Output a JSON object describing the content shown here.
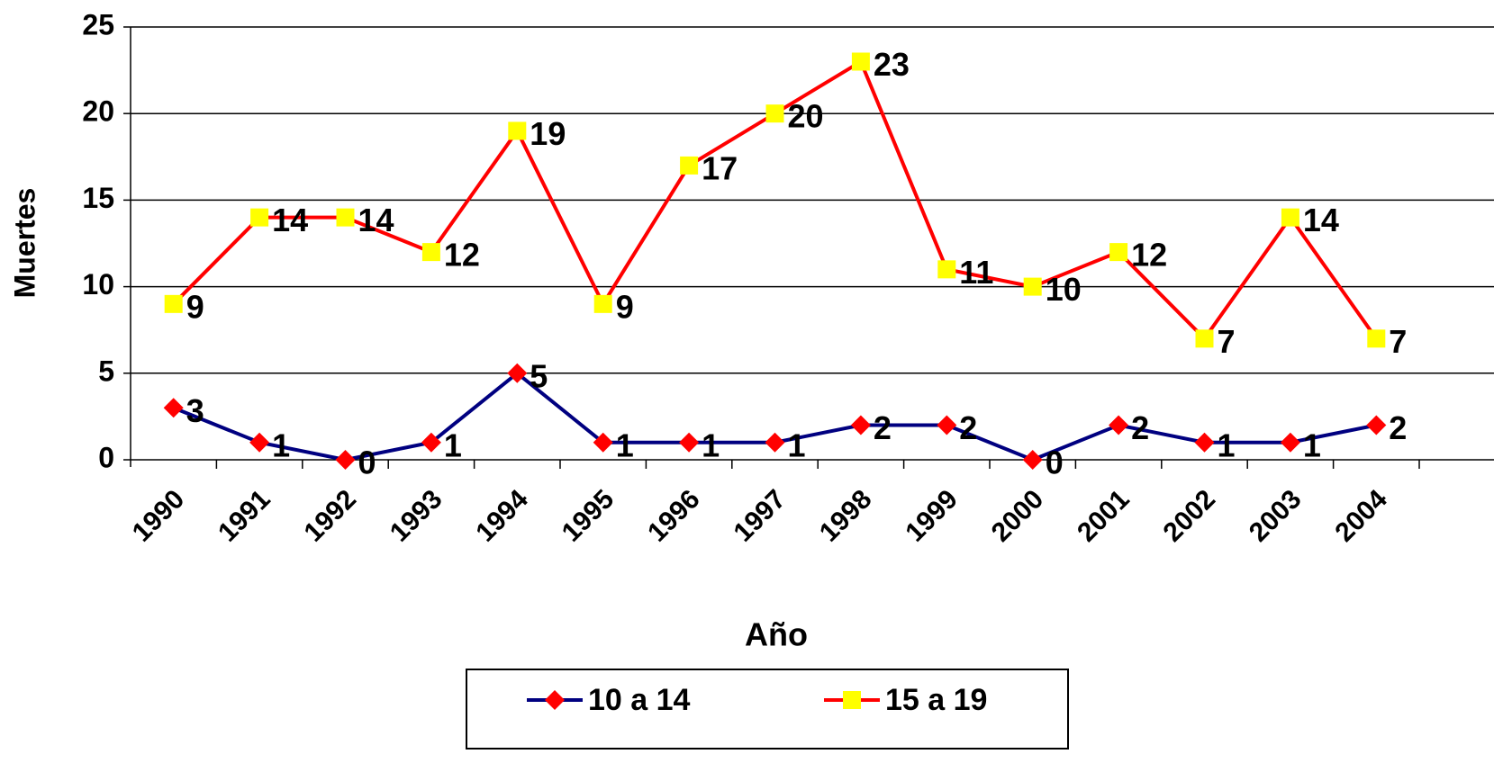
{
  "chart_data": {
    "type": "line",
    "x_label": "Año",
    "y_label": "Muertes",
    "categories": [
      "1990",
      "1991",
      "1992",
      "1993",
      "1994",
      "1995",
      "1996",
      "1997",
      "1998",
      "1999",
      "2000",
      "2001",
      "2002",
      "2003",
      "2004"
    ],
    "series": [
      {
        "name": "10 a 14",
        "color": "#000080",
        "marker": "diamond",
        "marker_color": "#ff0000",
        "values": [
          3,
          1,
          0,
          1,
          5,
          1,
          1,
          1,
          2,
          2,
          0,
          2,
          1,
          1,
          2
        ]
      },
      {
        "name": "15 a 19",
        "color": "#ff0000",
        "marker": "square",
        "marker_color": "#ffff00",
        "values": [
          9,
          14,
          14,
          12,
          19,
          9,
          17,
          20,
          23,
          11,
          10,
          12,
          7,
          14,
          7
        ]
      }
    ],
    "ylim": [
      0,
      25
    ],
    "yticks": [
      0,
      5,
      10,
      15,
      20,
      25
    ],
    "grid": true,
    "legend": "bottom"
  }
}
